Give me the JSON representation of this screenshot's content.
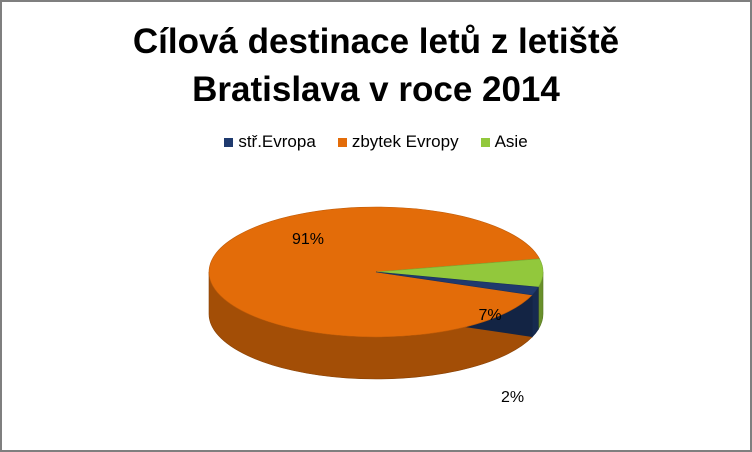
{
  "chart_data": {
    "type": "pie",
    "title_lines": [
      "Cílová destinace letů z letiště",
      "Bratislava v roce 2014"
    ],
    "categories": [
      "stř.Evropa",
      "zbytek Evropy",
      "Asie"
    ],
    "values": [
      2,
      91,
      7
    ],
    "data_labels": [
      "2%",
      "91%",
      "7%"
    ],
    "colors": [
      "#1f3a6e",
      "#e36c09",
      "#92c83c"
    ],
    "legend_position": "top",
    "style": "3d"
  }
}
